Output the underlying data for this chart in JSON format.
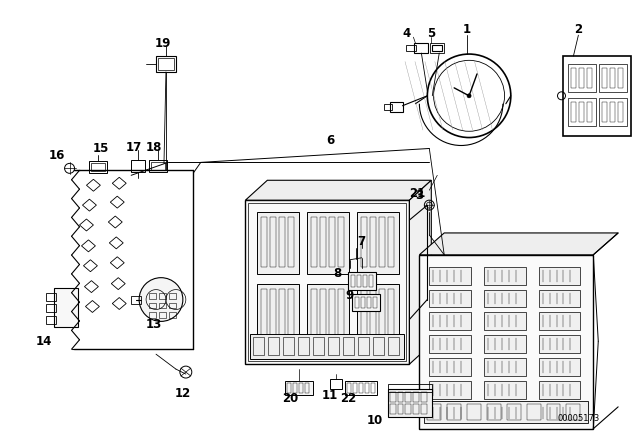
{
  "bg_color": "#ffffff",
  "line_color": "#000000",
  "fig_width": 6.4,
  "fig_height": 4.48,
  "dpi": 100,
  "watermark": "00005173"
}
